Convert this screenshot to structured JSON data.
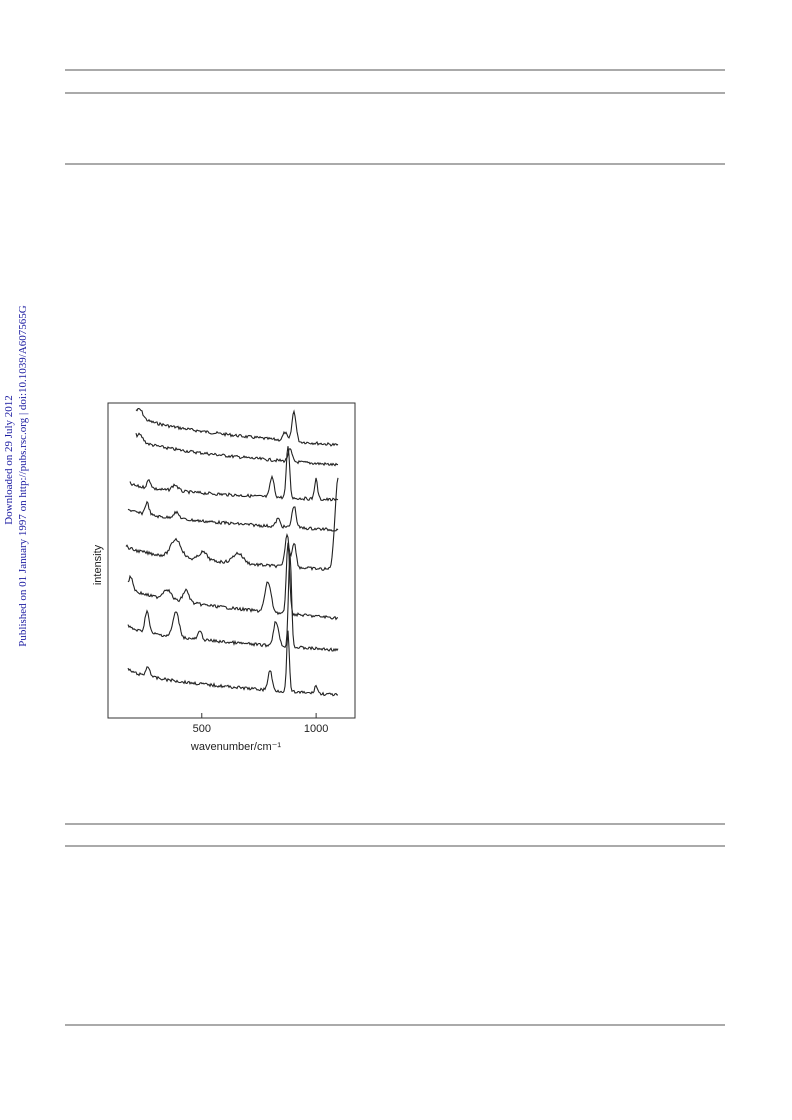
{
  "side_notes": [
    "Downloaded on 29 July 2012",
    "Published on 01 January 1997 on http://pubs.rsc.org | doi:10.1039/A607565G"
  ],
  "chart_data": {
    "type": "line",
    "xlabel": "wavenumber/cm⁻¹",
    "ylabel": "intensity",
    "xlim": [
      90,
      1170
    ],
    "xticks": [
      500,
      1000
    ]
  }
}
